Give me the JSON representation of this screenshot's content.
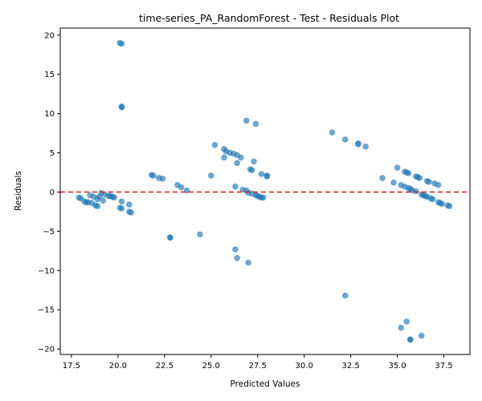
{
  "chart_data": {
    "type": "scatter",
    "title": "time-series_PA_RandomForest - Test - Residuals Plot",
    "xlabel": "Predicted Values",
    "ylabel": "Residuals",
    "xlim": [
      16.9,
      38.9
    ],
    "ylim": [
      -20.7,
      20.9
    ],
    "xticks": [
      "17.5",
      "20.0",
      "22.5",
      "25.0",
      "27.5",
      "30.0",
      "32.5",
      "35.0",
      "37.5"
    ],
    "yticks": [
      "20",
      "15",
      "10",
      "5",
      "0",
      "−5",
      "−10",
      "−15",
      "−20"
    ],
    "xtick_values": [
      17.5,
      20.0,
      22.5,
      25.0,
      27.5,
      30.0,
      32.5,
      35.0,
      37.5
    ],
    "ytick_values": [
      20,
      15,
      10,
      5,
      0,
      -5,
      -10,
      -15,
      -20
    ],
    "grid": false,
    "reference_line": {
      "y": 0,
      "color": "#d62728",
      "style": "dashed"
    },
    "marker_color": "#1f77b4",
    "marker_alpha": 0.65,
    "points": [
      [
        17.9,
        -0.7
      ],
      [
        18.0,
        -0.8
      ],
      [
        18.2,
        -1.2
      ],
      [
        18.3,
        -1.3
      ],
      [
        18.4,
        -1.3
      ],
      [
        18.5,
        -0.4
      ],
      [
        18.6,
        -1.4
      ],
      [
        18.7,
        -0.6
      ],
      [
        18.8,
        -1.7
      ],
      [
        18.9,
        -1.8
      ],
      [
        18.9,
        -0.9
      ],
      [
        19.0,
        -0.6
      ],
      [
        19.1,
        -0.1
      ],
      [
        19.2,
        -1.1
      ],
      [
        19.3,
        -0.3
      ],
      [
        19.5,
        -0.5
      ],
      [
        19.6,
        -0.5
      ],
      [
        19.7,
        -0.6
      ],
      [
        19.8,
        -0.7
      ],
      [
        20.1,
        -2.0
      ],
      [
        20.2,
        -2.1
      ],
      [
        20.2,
        -1.2
      ],
      [
        20.6,
        -1.6
      ],
      [
        20.6,
        -2.5
      ],
      [
        20.7,
        -2.6
      ],
      [
        20.1,
        19.0
      ],
      [
        20.2,
        18.9
      ],
      [
        20.2,
        10.9
      ],
      [
        20.2,
        10.8
      ],
      [
        21.8,
        2.2
      ],
      [
        21.9,
        2.1
      ],
      [
        22.2,
        1.8
      ],
      [
        22.4,
        1.7
      ],
      [
        22.8,
        -5.8
      ],
      [
        22.8,
        -5.8
      ],
      [
        23.2,
        0.9
      ],
      [
        23.4,
        0.6
      ],
      [
        23.7,
        0.2
      ],
      [
        24.4,
        -5.4
      ],
      [
        25.0,
        2.1
      ],
      [
        25.2,
        6.0
      ],
      [
        25.7,
        5.5
      ],
      [
        25.8,
        5.2
      ],
      [
        25.7,
        4.4
      ],
      [
        26.0,
        5.0
      ],
      [
        26.2,
        4.9
      ],
      [
        26.4,
        4.7
      ],
      [
        26.4,
        3.7
      ],
      [
        26.6,
        4.4
      ],
      [
        26.3,
        0.7
      ],
      [
        26.7,
        0.3
      ],
      [
        26.9,
        0.2
      ],
      [
        27.0,
        -0.1
      ],
      [
        27.1,
        2.9
      ],
      [
        27.2,
        2.8
      ],
      [
        27.3,
        3.9
      ],
      [
        27.2,
        -0.2
      ],
      [
        27.4,
        -0.4
      ],
      [
        27.5,
        -0.5
      ],
      [
        27.6,
        -0.6
      ],
      [
        27.7,
        -0.7
      ],
      [
        27.8,
        -0.7
      ],
      [
        27.7,
        2.3
      ],
      [
        28.0,
        2.1
      ],
      [
        28.0,
        2.0
      ],
      [
        26.9,
        9.1
      ],
      [
        27.4,
        8.7
      ],
      [
        26.3,
        -7.3
      ],
      [
        26.4,
        -8.4
      ],
      [
        27.0,
        -9.0
      ],
      [
        31.5,
        7.6
      ],
      [
        32.2,
        6.7
      ],
      [
        32.9,
        6.2
      ],
      [
        32.9,
        6.1
      ],
      [
        33.3,
        5.8
      ],
      [
        32.2,
        -13.2
      ],
      [
        34.2,
        1.8
      ],
      [
        34.8,
        1.2
      ],
      [
        35.0,
        3.1
      ],
      [
        35.2,
        0.9
      ],
      [
        35.4,
        2.6
      ],
      [
        35.5,
        2.5
      ],
      [
        35.6,
        2.4
      ],
      [
        35.4,
        0.7
      ],
      [
        35.6,
        0.5
      ],
      [
        35.7,
        0.4
      ],
      [
        35.8,
        0.2
      ],
      [
        36.0,
        0.1
      ],
      [
        36.0,
        2.0
      ],
      [
        36.1,
        1.9
      ],
      [
        36.2,
        1.8
      ],
      [
        36.3,
        -0.3
      ],
      [
        36.4,
        -0.4
      ],
      [
        36.5,
        -0.5
      ],
      [
        36.6,
        -0.6
      ],
      [
        36.6,
        1.4
      ],
      [
        36.7,
        1.3
      ],
      [
        36.8,
        -0.8
      ],
      [
        36.9,
        -0.9
      ],
      [
        37.0,
        1.1
      ],
      [
        37.2,
        0.9
      ],
      [
        37.2,
        -1.3
      ],
      [
        37.3,
        -1.4
      ],
      [
        37.4,
        -1.5
      ],
      [
        37.7,
        -1.7
      ],
      [
        37.8,
        -1.8
      ],
      [
        35.2,
        -17.3
      ],
      [
        35.5,
        -16.5
      ],
      [
        35.7,
        -18.8
      ],
      [
        35.7,
        -18.8
      ],
      [
        36.3,
        -18.3
      ]
    ]
  }
}
